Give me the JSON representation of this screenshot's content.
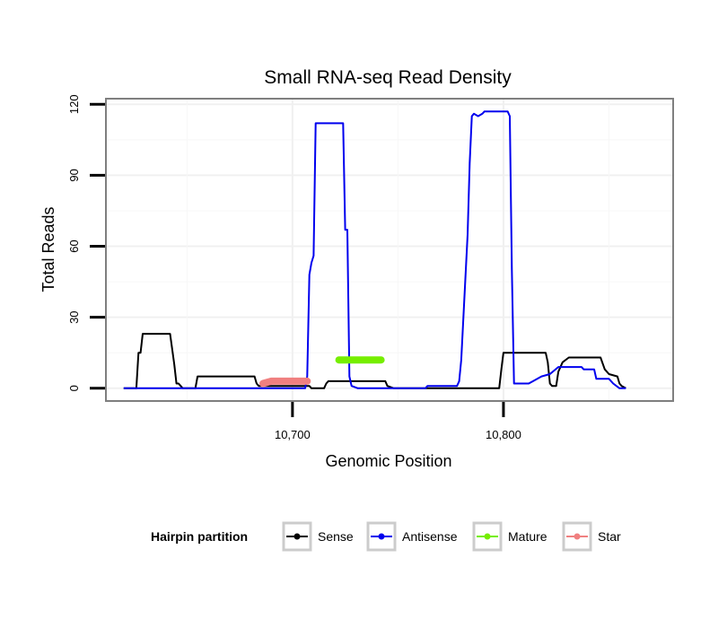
{
  "chart_data": {
    "type": "line",
    "title": "Small RNA-seq Read Density",
    "xlabel": "Genomic Position",
    "ylabel": "Total Reads",
    "xlim": [
      10612,
      10880
    ],
    "ylim": [
      -5,
      122
    ],
    "x_ticks": [
      10700,
      10800
    ],
    "x_tick_labels": [
      "10,700",
      "10,800"
    ],
    "y_ticks": [
      0,
      30,
      60,
      90,
      120
    ],
    "y_tick_labels": [
      "0",
      "30",
      "60",
      "90",
      "120"
    ],
    "grid": true,
    "legend": {
      "title": "Hairpin partition",
      "placement": "bottom",
      "entries": [
        "Sense",
        "Antisense",
        "Mature",
        "Star"
      ]
    },
    "series": [
      {
        "name": "Sense",
        "color": "#000000",
        "width": "thin",
        "points": [
          [
            10620,
            0
          ],
          [
            10626,
            0
          ],
          [
            10627,
            15
          ],
          [
            10628,
            15
          ],
          [
            10629,
            23
          ],
          [
            10640,
            23
          ],
          [
            10642,
            23
          ],
          [
            10644,
            10
          ],
          [
            10645,
            2
          ],
          [
            10646,
            2
          ],
          [
            10647,
            1
          ],
          [
            10648,
            0
          ],
          [
            10654,
            0
          ],
          [
            10655,
            5
          ],
          [
            10682,
            5
          ],
          [
            10683,
            2
          ],
          [
            10684,
            1
          ],
          [
            10708,
            1
          ],
          [
            10709,
            0
          ],
          [
            10715,
            0
          ],
          [
            10716,
            2
          ],
          [
            10717,
            3
          ],
          [
            10744,
            3
          ],
          [
            10745,
            1
          ],
          [
            10748,
            0
          ],
          [
            10798,
            0
          ],
          [
            10799,
            8
          ],
          [
            10800,
            15
          ],
          [
            10820,
            15
          ],
          [
            10821,
            11
          ],
          [
            10822,
            2
          ],
          [
            10823,
            1
          ],
          [
            10825,
            1
          ],
          [
            10826,
            7
          ],
          [
            10828,
            11
          ],
          [
            10831,
            13
          ],
          [
            10846,
            13
          ],
          [
            10848,
            8
          ],
          [
            10850,
            6
          ],
          [
            10854,
            5
          ],
          [
            10855,
            2
          ],
          [
            10856,
            1
          ],
          [
            10858,
            0
          ]
        ]
      },
      {
        "name": "Antisense",
        "color": "#0000ee",
        "width": "thin",
        "points": [
          [
            10620,
            0
          ],
          [
            10697,
            0
          ],
          [
            10706,
            0
          ],
          [
            10707,
            5
          ],
          [
            10708,
            48
          ],
          [
            10709,
            53
          ],
          [
            10710,
            56
          ],
          [
            10711,
            112
          ],
          [
            10724,
            112
          ],
          [
            10725,
            67
          ],
          [
            10726,
            67
          ],
          [
            10727,
            5
          ],
          [
            10728,
            1
          ],
          [
            10731,
            0
          ],
          [
            10763,
            0
          ],
          [
            10764,
            1
          ],
          [
            10778,
            1
          ],
          [
            10779,
            3
          ],
          [
            10780,
            12
          ],
          [
            10783,
            65
          ],
          [
            10784,
            95
          ],
          [
            10785,
            115
          ],
          [
            10786,
            116
          ],
          [
            10788,
            115
          ],
          [
            10790,
            116
          ],
          [
            10791,
            117
          ],
          [
            10802,
            117
          ],
          [
            10803,
            115
          ],
          [
            10804,
            50
          ],
          [
            10805,
            2
          ],
          [
            10812,
            2
          ],
          [
            10814,
            3
          ],
          [
            10816,
            4
          ],
          [
            10818,
            5
          ],
          [
            10822,
            6
          ],
          [
            10826,
            9
          ],
          [
            10837,
            9
          ],
          [
            10838,
            8
          ],
          [
            10843,
            8
          ],
          [
            10844,
            4
          ],
          [
            10850,
            4
          ],
          [
            10852,
            2
          ],
          [
            10855,
            0
          ],
          [
            10858,
            0
          ]
        ]
      },
      {
        "name": "Mature",
        "color": "#76ee00",
        "width": "thick",
        "points": [
          [
            10722,
            12
          ],
          [
            10742,
            12
          ]
        ]
      },
      {
        "name": "Star",
        "color": "#f08080",
        "width": "thick",
        "points": [
          [
            10686,
            2
          ],
          [
            10690,
            3
          ],
          [
            10693,
            3
          ],
          [
            10705,
            3
          ],
          [
            10707,
            3
          ]
        ]
      }
    ]
  }
}
